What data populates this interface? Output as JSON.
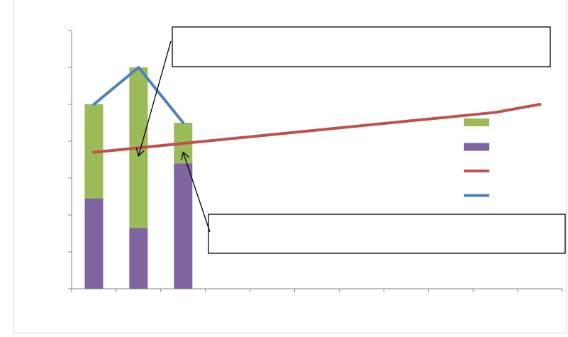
{
  "chart_data": {
    "type": "bar",
    "stacked": true,
    "categories": [
      "",
      "",
      "",
      "",
      "",
      "",
      "",
      "",
      "",
      "",
      ""
    ],
    "ylim": [
      0,
      7
    ],
    "grid": false,
    "legend_position": "right",
    "title": "",
    "xlabel": "",
    "ylabel": "",
    "series": [
      {
        "kind": "bar",
        "color": "#8064a2",
        "values": [
          2.45,
          1.65,
          3.4,
          null,
          null,
          null,
          null,
          null,
          null,
          null,
          null
        ]
      },
      {
        "kind": "bar",
        "color": "#9bbb59",
        "values": [
          2.55,
          4.35,
          1.1,
          null,
          null,
          null,
          null,
          null,
          null,
          null,
          null
        ]
      },
      {
        "kind": "line",
        "color": "#c0504d",
        "values": [
          3.7,
          3.82,
          3.94,
          4.06,
          4.18,
          4.3,
          4.42,
          4.54,
          4.66,
          4.78,
          5.0
        ]
      },
      {
        "kind": "line",
        "color": "#4f81bd",
        "values": [
          5.0,
          6.0,
          4.5,
          null,
          null,
          null,
          null,
          null,
          null,
          null,
          null
        ]
      }
    ],
    "legend": [
      {
        "kind": "bar",
        "color": "#9bbb59"
      },
      {
        "kind": "bar",
        "color": "#8064a2"
      },
      {
        "kind": "line",
        "color": "#c0504d"
      },
      {
        "kind": "line",
        "color": "#4f81bd"
      }
    ],
    "callouts": [
      {
        "text": "",
        "points_to": {
          "category": 1,
          "value": 3.6
        }
      },
      {
        "text": "",
        "points_to": {
          "category": 2,
          "value": 3.7
        }
      }
    ]
  }
}
